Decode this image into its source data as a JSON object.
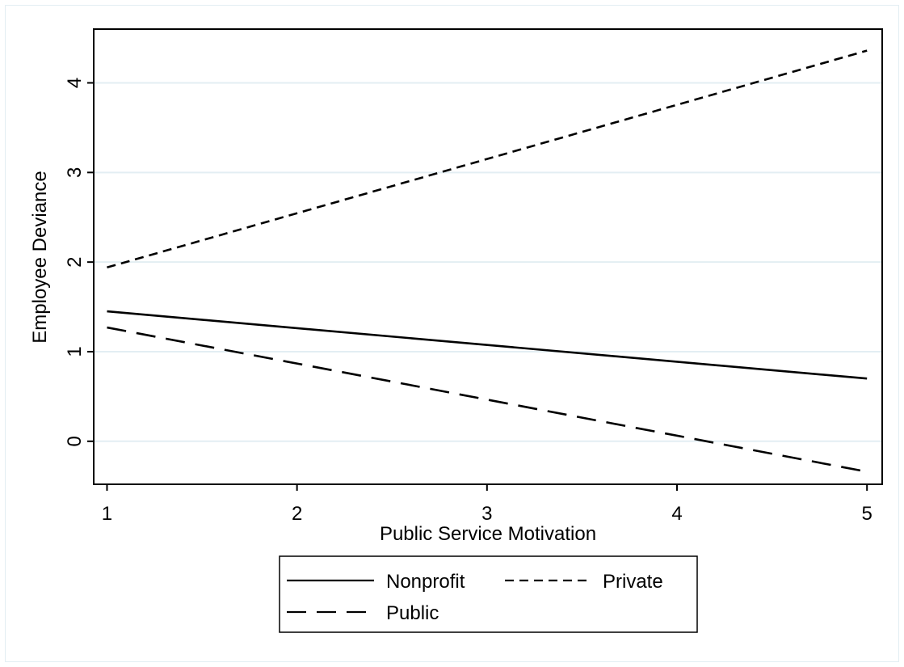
{
  "chart_data": {
    "type": "line",
    "title": "",
    "xlabel": "Public Service Motivation",
    "ylabel": "Employee Deviance",
    "x": [
      1,
      5
    ],
    "xlim": [
      0.93,
      5.08
    ],
    "ylim": [
      -0.48,
      4.6
    ],
    "xticks": [
      1,
      2,
      3,
      4,
      5
    ],
    "yticks": [
      0,
      1,
      2,
      3,
      4
    ],
    "grid": true,
    "legend_position": "bottom",
    "series": [
      {
        "name": "Nonprofit",
        "values": [
          1.45,
          0.7
        ],
        "dash": "solid",
        "color": "#000000"
      },
      {
        "name": "Private",
        "values": [
          1.94,
          4.36
        ],
        "dash": "short-dash",
        "color": "#000000"
      },
      {
        "name": "Public",
        "values": [
          1.27,
          -0.34
        ],
        "dash": "long-dash",
        "color": "#000000"
      }
    ],
    "colors": {
      "gridline": "#e3eef3",
      "frame": "#e3eef3",
      "axis": "#000000"
    }
  }
}
